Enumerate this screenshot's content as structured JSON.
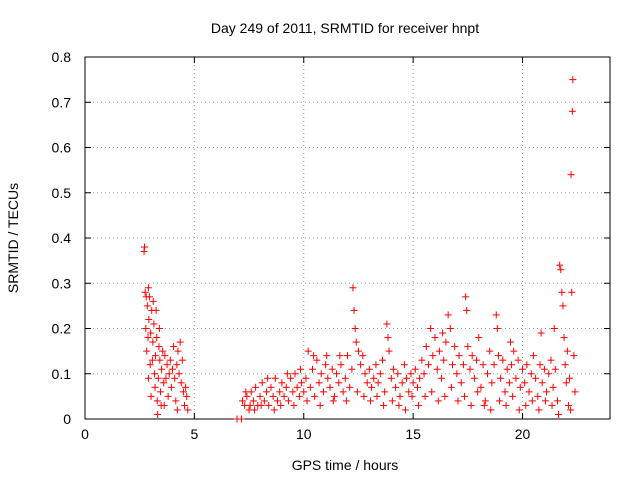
{
  "chart_data": {
    "type": "scatter",
    "title": "Day 249 of 2011, SRMTID for receiver hnpt",
    "xlabel": "GPS time / hours",
    "ylabel": "SRMTID / TECUs",
    "xlim": [
      0,
      24
    ],
    "ylim": [
      0,
      0.8
    ],
    "xticks": [
      0,
      5,
      10,
      15,
      20
    ],
    "yticks": [
      0,
      0.1,
      0.2,
      0.3,
      0.4,
      0.5,
      0.6,
      0.7,
      0.8
    ],
    "xtick_labels": [
      "0",
      "5",
      "10",
      "15",
      "20"
    ],
    "ytick_labels": [
      "0",
      "0.1",
      "0.2",
      "0.3",
      "0.4",
      "0.5",
      "0.6",
      "0.7",
      "0.8"
    ],
    "grid": true,
    "marker": "+",
    "color": "#ff0000",
    "series": [
      {
        "points": [
          [
            2.7,
            0.37
          ],
          [
            2.72,
            0.38
          ],
          [
            2.75,
            0.28
          ],
          [
            2.8,
            0.27
          ],
          [
            2.85,
            0.25
          ],
          [
            2.9,
            0.29
          ],
          [
            2.95,
            0.27
          ],
          [
            2.78,
            0.2
          ],
          [
            2.82,
            0.15
          ],
          [
            2.88,
            0.18
          ],
          [
            2.92,
            0.22
          ],
          [
            2.98,
            0.12
          ],
          [
            3.0,
            0.19
          ],
          [
            3.05,
            0.24
          ],
          [
            3.1,
            0.17
          ],
          [
            3.12,
            0.26
          ],
          [
            3.15,
            0.21
          ],
          [
            3.18,
            0.1
          ],
          [
            3.2,
            0.07
          ],
          [
            3.22,
            0.14
          ],
          [
            3.25,
            0.24
          ],
          [
            3.28,
            0.18
          ],
          [
            3.3,
            0.04
          ],
          [
            3.32,
            0.01
          ],
          [
            3.35,
            0.09
          ],
          [
            3.38,
            0.16
          ],
          [
            3.4,
            0.2
          ],
          [
            3.42,
            0.13
          ],
          [
            3.45,
            0.06
          ],
          [
            3.5,
            0.11
          ],
          [
            3.55,
            0.15
          ],
          [
            3.6,
            0.08
          ],
          [
            3.65,
            0.14
          ],
          [
            3.7,
            0.09
          ],
          [
            3.75,
            0.12
          ],
          [
            3.8,
            0.05
          ],
          [
            3.85,
            0.1
          ],
          [
            3.9,
            0.13
          ],
          [
            3.95,
            0.07
          ],
          [
            4.0,
            0.11
          ],
          [
            4.05,
            0.16
          ],
          [
            4.1,
            0.09
          ],
          [
            4.15,
            0.04
          ],
          [
            4.2,
            0.12
          ],
          [
            4.25,
            0.15
          ],
          [
            4.3,
            0.1
          ],
          [
            4.35,
            0.17
          ],
          [
            4.4,
            0.08
          ],
          [
            4.45,
            0.13
          ],
          [
            4.5,
            0.06
          ],
          [
            4.55,
            0.03
          ],
          [
            4.6,
            0.07
          ],
          [
            4.65,
            0.05
          ],
          [
            4.7,
            0.02
          ],
          [
            3.02,
            0.05
          ],
          [
            3.48,
            0.03
          ],
          [
            4.22,
            0.02
          ],
          [
            3.62,
            0.03
          ],
          [
            3.08,
            0.13
          ],
          [
            2.9,
            0.09
          ],
          [
            6.95,
            0.0
          ],
          [
            7.15,
            0.0
          ],
          [
            7.2,
            0.04
          ],
          [
            7.3,
            0.03
          ],
          [
            7.4,
            0.05
          ],
          [
            7.5,
            0.02
          ],
          [
            7.6,
            0.06
          ],
          [
            7.7,
            0.04
          ],
          [
            7.8,
            0.07
          ],
          [
            7.9,
            0.03
          ],
          [
            8.0,
            0.05
          ],
          [
            8.1,
            0.08
          ],
          [
            8.2,
            0.04
          ],
          [
            8.3,
            0.06
          ],
          [
            8.4,
            0.03
          ],
          [
            8.5,
            0.07
          ],
          [
            8.6,
            0.05
          ],
          [
            8.7,
            0.09
          ],
          [
            8.8,
            0.04
          ],
          [
            8.9,
            0.06
          ],
          [
            9.0,
            0.08
          ],
          [
            9.1,
            0.05
          ],
          [
            9.2,
            0.07
          ],
          [
            9.3,
            0.04
          ],
          [
            9.4,
            0.09
          ],
          [
            9.5,
            0.06
          ],
          [
            9.6,
            0.1
          ],
          [
            9.7,
            0.07
          ],
          [
            9.8,
            0.05
          ],
          [
            9.9,
            0.08
          ],
          [
            7.35,
            0.06
          ],
          [
            7.55,
            0.03
          ],
          [
            7.75,
            0.02
          ],
          [
            8.05,
            0.03
          ],
          [
            8.35,
            0.09
          ],
          [
            8.65,
            0.02
          ],
          [
            8.95,
            0.03
          ],
          [
            9.25,
            0.1
          ],
          [
            9.55,
            0.03
          ],
          [
            9.85,
            0.11
          ],
          [
            10.0,
            0.06
          ],
          [
            10.1,
            0.09
          ],
          [
            10.2,
            0.15
          ],
          [
            10.3,
            0.07
          ],
          [
            10.4,
            0.11
          ],
          [
            10.5,
            0.05
          ],
          [
            10.6,
            0.13
          ],
          [
            10.7,
            0.08
          ],
          [
            10.8,
            0.1
          ],
          [
            10.9,
            0.06
          ],
          [
            11.0,
            0.12
          ],
          [
            11.1,
            0.09
          ],
          [
            11.2,
            0.07
          ],
          [
            11.3,
            0.11
          ],
          [
            11.4,
            0.05
          ],
          [
            11.5,
            0.1
          ],
          [
            11.6,
            0.08
          ],
          [
            11.7,
            0.12
          ],
          [
            11.8,
            0.06
          ],
          [
            11.9,
            0.09
          ],
          [
            12.0,
            0.14
          ],
          [
            12.1,
            0.07
          ],
          [
            12.2,
            0.11
          ],
          [
            12.25,
            0.29
          ],
          [
            12.3,
            0.24
          ],
          [
            12.35,
            0.2
          ],
          [
            12.4,
            0.17
          ],
          [
            12.5,
            0.15
          ],
          [
            12.6,
            0.12
          ],
          [
            12.7,
            0.14
          ],
          [
            12.8,
            0.1
          ],
          [
            12.9,
            0.08
          ],
          [
            13.0,
            0.11
          ],
          [
            13.1,
            0.07
          ],
          [
            13.2,
            0.09
          ],
          [
            13.3,
            0.12
          ],
          [
            13.4,
            0.08
          ],
          [
            13.5,
            0.1
          ],
          [
            13.6,
            0.13
          ],
          [
            13.7,
            0.06
          ],
          [
            13.8,
            0.21
          ],
          [
            13.85,
            0.18
          ],
          [
            13.9,
            0.15
          ],
          [
            14.0,
            0.09
          ],
          [
            14.1,
            0.11
          ],
          [
            14.2,
            0.07
          ],
          [
            14.3,
            0.1
          ],
          [
            14.4,
            0.05
          ],
          [
            14.5,
            0.08
          ],
          [
            14.6,
            0.12
          ],
          [
            14.7,
            0.09
          ],
          [
            14.8,
            0.06
          ],
          [
            14.9,
            0.1
          ],
          [
            15.0,
            0.08
          ],
          [
            15.1,
            0.11
          ],
          [
            15.2,
            0.07
          ],
          [
            15.3,
            0.09
          ],
          [
            15.4,
            0.13
          ],
          [
            15.5,
            0.1
          ],
          [
            15.6,
            0.16
          ],
          [
            15.7,
            0.12
          ],
          [
            15.8,
            0.2
          ],
          [
            15.9,
            0.14
          ],
          [
            16.0,
            0.18
          ],
          [
            16.1,
            0.11
          ],
          [
            16.2,
            0.15
          ],
          [
            16.3,
            0.09
          ],
          [
            16.4,
            0.13
          ],
          [
            16.5,
            0.17
          ],
          [
            16.6,
            0.23
          ],
          [
            16.7,
            0.2
          ],
          [
            16.8,
            0.12
          ],
          [
            16.9,
            0.16
          ],
          [
            17.0,
            0.1
          ],
          [
            17.1,
            0.14
          ],
          [
            17.2,
            0.08
          ],
          [
            17.3,
            0.12
          ],
          [
            17.4,
            0.27
          ],
          [
            17.45,
            0.24
          ],
          [
            17.5,
            0.16
          ],
          [
            17.6,
            0.11
          ],
          [
            17.7,
            0.14
          ],
          [
            17.8,
            0.09
          ],
          [
            17.9,
            0.13
          ],
          [
            18.0,
            0.18
          ],
          [
            18.1,
            0.07
          ],
          [
            18.2,
            0.12
          ],
          [
            18.3,
            0.04
          ],
          [
            18.4,
            0.1
          ],
          [
            18.5,
            0.15
          ],
          [
            18.6,
            0.08
          ],
          [
            18.7,
            0.12
          ],
          [
            18.8,
            0.23
          ],
          [
            18.85,
            0.2
          ],
          [
            18.9,
            0.14
          ],
          [
            19.0,
            0.09
          ],
          [
            19.1,
            0.13
          ],
          [
            19.2,
            0.06
          ],
          [
            19.3,
            0.11
          ],
          [
            19.4,
            0.08
          ],
          [
            19.5,
            0.12
          ],
          [
            19.6,
            0.15
          ],
          [
            19.7,
            0.09
          ],
          [
            19.8,
            0.13
          ],
          [
            19.9,
            0.07
          ],
          [
            20.0,
            0.11
          ],
          [
            20.1,
            0.08
          ],
          [
            20.2,
            0.12
          ],
          [
            20.3,
            0.06
          ],
          [
            20.4,
            0.1
          ],
          [
            20.5,
            0.14
          ],
          [
            20.6,
            0.09
          ],
          [
            20.7,
            0.05
          ],
          [
            20.8,
            0.12
          ],
          [
            20.9,
            0.08
          ],
          [
            21.0,
            0.11
          ],
          [
            21.1,
            0.06
          ],
          [
            21.2,
            0.1
          ],
          [
            21.3,
            0.13
          ],
          [
            21.4,
            0.07
          ],
          [
            21.5,
            0.11
          ],
          [
            21.6,
            0.04
          ],
          [
            21.7,
            0.34
          ],
          [
            21.75,
            0.33
          ],
          [
            21.8,
            0.28
          ],
          [
            21.85,
            0.25
          ],
          [
            21.9,
            0.18
          ],
          [
            21.95,
            0.12
          ],
          [
            22.0,
            0.08
          ],
          [
            22.05,
            0.15
          ],
          [
            22.1,
            0.03
          ],
          [
            22.15,
            0.09
          ],
          [
            22.2,
            0.02
          ],
          [
            22.25,
            0.28
          ],
          [
            22.3,
            0.75
          ],
          [
            22.28,
            0.68
          ],
          [
            22.22,
            0.54
          ],
          [
            22.35,
            0.14
          ],
          [
            22.4,
            0.06
          ],
          [
            10.15,
            0.04
          ],
          [
            10.45,
            0.14
          ],
          [
            10.75,
            0.03
          ],
          [
            11.05,
            0.14
          ],
          [
            11.35,
            0.04
          ],
          [
            11.65,
            0.14
          ],
          [
            11.95,
            0.04
          ],
          [
            12.45,
            0.06
          ],
          [
            12.75,
            0.05
          ],
          [
            13.05,
            0.04
          ],
          [
            13.35,
            0.05
          ],
          [
            13.65,
            0.03
          ],
          [
            14.05,
            0.04
          ],
          [
            14.35,
            0.03
          ],
          [
            14.65,
            0.02
          ],
          [
            14.95,
            0.05
          ],
          [
            15.25,
            0.03
          ],
          [
            15.55,
            0.05
          ],
          [
            15.85,
            0.06
          ],
          [
            16.15,
            0.04
          ],
          [
            16.45,
            0.05
          ],
          [
            16.75,
            0.07
          ],
          [
            17.05,
            0.04
          ],
          [
            17.35,
            0.05
          ],
          [
            17.65,
            0.03
          ],
          [
            17.95,
            0.06
          ],
          [
            18.25,
            0.03
          ],
          [
            18.55,
            0.02
          ],
          [
            18.95,
            0.04
          ],
          [
            19.25,
            0.03
          ],
          [
            19.55,
            0.05
          ],
          [
            19.85,
            0.02
          ],
          [
            20.15,
            0.03
          ],
          [
            20.45,
            0.04
          ],
          [
            20.75,
            0.02
          ],
          [
            21.05,
            0.04
          ],
          [
            21.35,
            0.03
          ],
          [
            21.65,
            0.01
          ],
          [
            21.45,
            0.2
          ],
          [
            20.85,
            0.19
          ],
          [
            19.45,
            0.17
          ],
          [
            16.35,
            0.19
          ]
        ]
      }
    ]
  }
}
